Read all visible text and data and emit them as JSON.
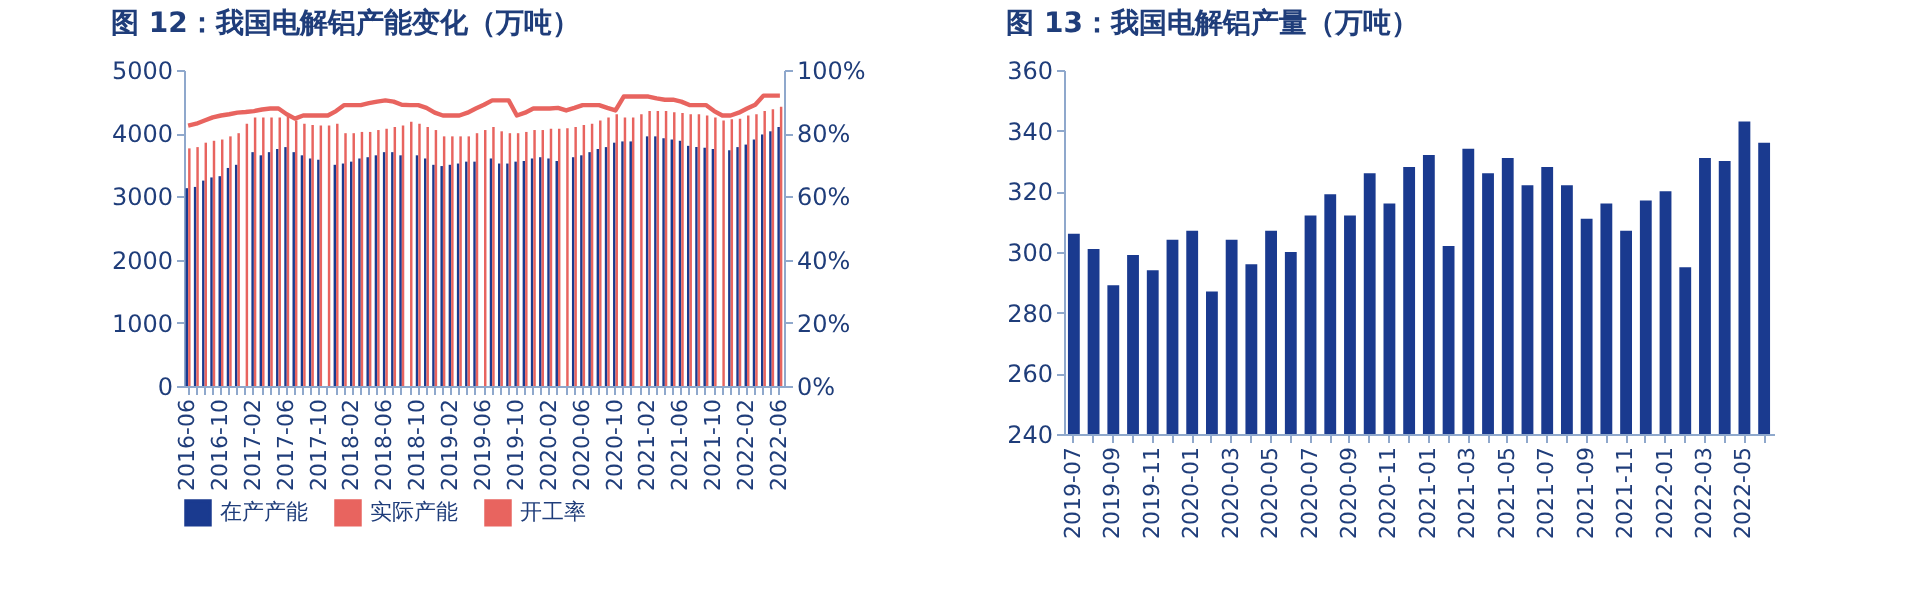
{
  "chart_data": [
    {
      "type": "bar",
      "title": "图 12：我国电解铝产能变化（万吨）",
      "categories": [
        "2016-06",
        null,
        null,
        null,
        "2016-10",
        null,
        null,
        null,
        "2017-02",
        null,
        null,
        null,
        "2017-06",
        null,
        null,
        null,
        "2017-10",
        null,
        null,
        null,
        "2018-02",
        null,
        null,
        null,
        "2018-06",
        null,
        null,
        null,
        "2018-10",
        null,
        null,
        null,
        "2019-02",
        null,
        null,
        null,
        "2019-06",
        null,
        null,
        null,
        "2019-10",
        null,
        null,
        null,
        "2020-02",
        null,
        null,
        null,
        "2020-06",
        null,
        null,
        null,
        "2020-10",
        null,
        null,
        null,
        "2021-02",
        null,
        null,
        null,
        "2021-06",
        null,
        null,
        null,
        "2021-10",
        null,
        null,
        null,
        "2022-02",
        null,
        null,
        null,
        "2022-06"
      ],
      "series": [
        {
          "name": "在产产能",
          "color": "#1a3a8f",
          "values": [
            3130,
            3150,
            3250,
            3300,
            3320,
            3450,
            3500,
            null,
            3700,
            3650,
            3700,
            3750,
            3780,
            3700,
            3650,
            3600,
            3580,
            null,
            3500,
            3520,
            3550,
            3600,
            3620,
            3650,
            3700,
            3700,
            3650,
            null,
            3650,
            3600,
            3500,
            3480,
            3500,
            3520,
            3550,
            3550,
            null,
            3600,
            3520,
            3520,
            3550,
            3560,
            3600,
            3620,
            3600,
            3560,
            null,
            3620,
            3650,
            3700,
            3750,
            3780,
            3850,
            3870,
            3870,
            null,
            3950,
            3950,
            3920,
            3900,
            3880,
            3800,
            3780,
            3770,
            3750,
            null,
            3730,
            3780,
            3820,
            3900,
            3980,
            4030,
            4100
          ]
        },
        {
          "name": "实际产能",
          "color": "#e8645f",
          "values": [
            3760,
            3780,
            3850,
            3880,
            3900,
            3950,
            4000,
            4150,
            4250,
            4250,
            4250,
            4250,
            4260,
            4200,
            4150,
            4130,
            4120,
            4120,
            4150,
            4000,
            4000,
            4020,
            4020,
            4050,
            4070,
            4100,
            4120,
            4180,
            4150,
            4100,
            4050,
            3950,
            3950,
            3950,
            3950,
            4000,
            4050,
            4100,
            4030,
            4000,
            4000,
            4020,
            4050,
            4050,
            4070,
            4070,
            4080,
            4100,
            4130,
            4150,
            4200,
            4250,
            4300,
            4250,
            4250,
            4300,
            4350,
            4350,
            4350,
            4330,
            4320,
            4300,
            4300,
            4280,
            4250,
            4200,
            4220,
            4230,
            4280,
            4300,
            4350,
            4380,
            4420
          ]
        },
        {
          "name": "开工率",
          "color": "#e8645f",
          "type": "line",
          "axis": "y2",
          "values": [
            82.4,
            83,
            84,
            85,
            85.6,
            86,
            86.5,
            86.7,
            87,
            87.5,
            87.8,
            87.8,
            86,
            84.6,
            85.6,
            85.6,
            85.6,
            85.6,
            87,
            88.9,
            88.9,
            88.9,
            89.5,
            90,
            90.4,
            90,
            89,
            88.9,
            88.9,
            88,
            86.5,
            85.6,
            85.6,
            85.6,
            86.5,
            87.8,
            89,
            90.4,
            90.4,
            90.4,
            85.6,
            86.5,
            87.8,
            87.8,
            87.8,
            88,
            87.2,
            88,
            88.9,
            88.9,
            88.9,
            88,
            87.2,
            91.6,
            91.6,
            91.6,
            91.6,
            91,
            90.6,
            90.6,
            90,
            88.9,
            88.9,
            88.9,
            87,
            85.6,
            85.6,
            86.5,
            87.8,
            89,
            91.9,
            91.9,
            91.9
          ]
        }
      ],
      "ylim": [
        0,
        5000
      ],
      "yticks": [
        0,
        1000,
        2000,
        3000,
        4000,
        5000
      ],
      "y2lim": [
        0,
        100
      ],
      "y2ticks": [
        {
          "value": 0,
          "label": "0%"
        },
        {
          "value": 20,
          "label": "20%"
        },
        {
          "value": 40,
          "label": "40%"
        },
        {
          "value": 60,
          "label": "60%"
        },
        {
          "value": 80,
          "label": "80%"
        },
        {
          "value": 100,
          "label": "100%"
        }
      ],
      "legend": "bottom",
      "grid": false
    },
    {
      "type": "bar",
      "title": "图 13：我国电解铝产量（万吨）",
      "categories": [
        "2019-07",
        null,
        "2019-09",
        null,
        "2019-11",
        null,
        "2020-01",
        null,
        "2020-03",
        null,
        "2020-05",
        null,
        "2020-07",
        null,
        "2020-09",
        null,
        "2020-11",
        null,
        "2021-01",
        null,
        "2021-03",
        null,
        "2021-05",
        null,
        "2021-07",
        null,
        "2021-09",
        null,
        "2021-11",
        null,
        "2022-01",
        null,
        "2022-03",
        null,
        "2022-05",
        null
      ],
      "values": [
        306,
        301,
        289,
        299,
        294,
        304,
        307,
        287,
        304,
        296,
        307,
        300,
        312,
        319,
        312,
        326,
        316,
        328,
        332,
        302,
        334,
        326,
        331,
        322,
        328,
        322,
        311,
        316,
        307,
        317,
        320,
        295,
        331,
        330,
        343,
        336
      ],
      "color": "#1a3a8f",
      "ylim": [
        240,
        360
      ],
      "yticks": [
        240,
        260,
        280,
        300,
        320,
        340,
        360
      ],
      "grid": false
    }
  ]
}
